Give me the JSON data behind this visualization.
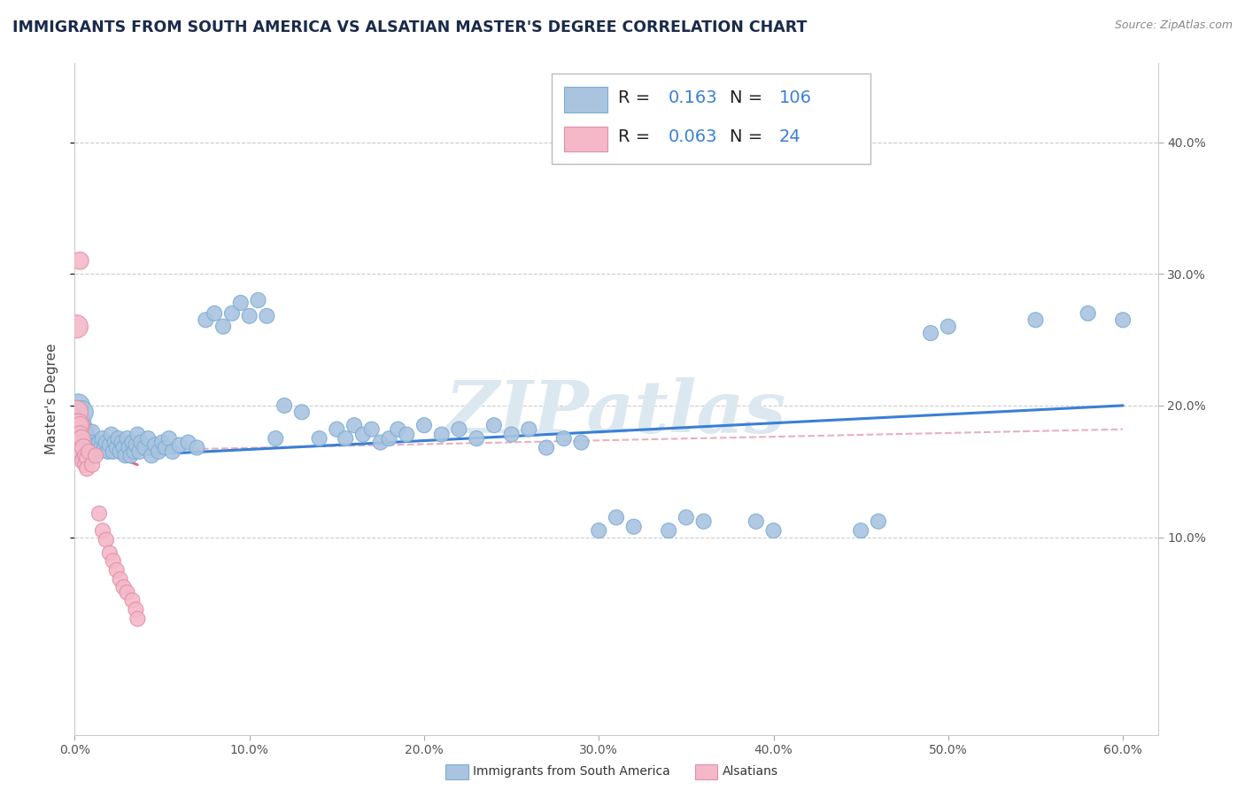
{
  "title": "IMMIGRANTS FROM SOUTH AMERICA VS ALSATIAN MASTER'S DEGREE CORRELATION CHART",
  "source": "Source: ZipAtlas.com",
  "ylabel": "Master's Degree",
  "xlim": [
    0.0,
    0.62
  ],
  "ylim": [
    -0.05,
    0.46
  ],
  "xtick_vals": [
    0.0,
    0.1,
    0.2,
    0.3,
    0.4,
    0.5,
    0.6
  ],
  "xtick_labels": [
    "0.0%",
    "10.0%",
    "20.0%",
    "30.0%",
    "40.0%",
    "50.0%",
    "60.0%"
  ],
  "ytick_vals": [
    0.1,
    0.2,
    0.3,
    0.4
  ],
  "ytick_labels": [
    "10.0%",
    "20.0%",
    "30.0%",
    "40.0%"
  ],
  "blue_color": "#aac4e0",
  "blue_edge": "#7aadd4",
  "pink_color": "#f4b8c8",
  "pink_edge": "#e090a8",
  "blue_line_color": "#3a7fd5",
  "pink_line_color": "#e06080",
  "pink_dash_color": "#e8b0bc",
  "grid_color": "#cccccc",
  "background_color": "#ffffff",
  "legend_R1": "0.163",
  "legend_N1": "106",
  "legend_R2": "0.063",
  "legend_N2": "24",
  "watermark": "ZIPatlas",
  "watermark_color": "#dce8f0",
  "blue_scatter": [
    [
      0.001,
      0.195
    ],
    [
      0.001,
      0.185
    ],
    [
      0.001,
      0.175
    ],
    [
      0.002,
      0.2
    ],
    [
      0.002,
      0.19
    ],
    [
      0.002,
      0.175
    ],
    [
      0.003,
      0.185
    ],
    [
      0.003,
      0.175
    ],
    [
      0.003,
      0.165
    ],
    [
      0.004,
      0.195
    ],
    [
      0.004,
      0.18
    ],
    [
      0.005,
      0.175
    ],
    [
      0.005,
      0.165
    ],
    [
      0.006,
      0.18
    ],
    [
      0.006,
      0.17
    ],
    [
      0.006,
      0.16
    ],
    [
      0.007,
      0.175
    ],
    [
      0.007,
      0.168
    ],
    [
      0.008,
      0.172
    ],
    [
      0.008,
      0.162
    ],
    [
      0.009,
      0.17
    ],
    [
      0.01,
      0.165
    ],
    [
      0.01,
      0.18
    ],
    [
      0.011,
      0.172
    ],
    [
      0.012,
      0.17
    ],
    [
      0.013,
      0.165
    ],
    [
      0.014,
      0.172
    ],
    [
      0.015,
      0.168
    ],
    [
      0.016,
      0.175
    ],
    [
      0.017,
      0.168
    ],
    [
      0.018,
      0.172
    ],
    [
      0.019,
      0.165
    ],
    [
      0.02,
      0.17
    ],
    [
      0.021,
      0.178
    ],
    [
      0.022,
      0.165
    ],
    [
      0.023,
      0.172
    ],
    [
      0.024,
      0.168
    ],
    [
      0.025,
      0.175
    ],
    [
      0.026,
      0.165
    ],
    [
      0.027,
      0.172
    ],
    [
      0.028,
      0.168
    ],
    [
      0.029,
      0.162
    ],
    [
      0.03,
      0.175
    ],
    [
      0.031,
      0.168
    ],
    [
      0.032,
      0.162
    ],
    [
      0.033,
      0.172
    ],
    [
      0.034,
      0.165
    ],
    [
      0.035,
      0.17
    ],
    [
      0.036,
      0.178
    ],
    [
      0.037,
      0.165
    ],
    [
      0.038,
      0.172
    ],
    [
      0.04,
      0.168
    ],
    [
      0.042,
      0.175
    ],
    [
      0.044,
      0.162
    ],
    [
      0.046,
      0.17
    ],
    [
      0.048,
      0.165
    ],
    [
      0.05,
      0.172
    ],
    [
      0.052,
      0.168
    ],
    [
      0.054,
      0.175
    ],
    [
      0.056,
      0.165
    ],
    [
      0.06,
      0.17
    ],
    [
      0.065,
      0.172
    ],
    [
      0.07,
      0.168
    ],
    [
      0.075,
      0.265
    ],
    [
      0.08,
      0.27
    ],
    [
      0.085,
      0.26
    ],
    [
      0.09,
      0.27
    ],
    [
      0.095,
      0.278
    ],
    [
      0.1,
      0.268
    ],
    [
      0.105,
      0.28
    ],
    [
      0.11,
      0.268
    ],
    [
      0.115,
      0.175
    ],
    [
      0.12,
      0.2
    ],
    [
      0.13,
      0.195
    ],
    [
      0.14,
      0.175
    ],
    [
      0.15,
      0.182
    ],
    [
      0.155,
      0.175
    ],
    [
      0.16,
      0.185
    ],
    [
      0.165,
      0.178
    ],
    [
      0.17,
      0.182
    ],
    [
      0.175,
      0.172
    ],
    [
      0.18,
      0.175
    ],
    [
      0.185,
      0.182
    ],
    [
      0.19,
      0.178
    ],
    [
      0.2,
      0.185
    ],
    [
      0.21,
      0.178
    ],
    [
      0.22,
      0.182
    ],
    [
      0.23,
      0.175
    ],
    [
      0.24,
      0.185
    ],
    [
      0.25,
      0.178
    ],
    [
      0.26,
      0.182
    ],
    [
      0.27,
      0.168
    ],
    [
      0.28,
      0.175
    ],
    [
      0.29,
      0.172
    ],
    [
      0.3,
      0.105
    ],
    [
      0.31,
      0.115
    ],
    [
      0.32,
      0.108
    ],
    [
      0.34,
      0.105
    ],
    [
      0.35,
      0.115
    ],
    [
      0.36,
      0.112
    ],
    [
      0.39,
      0.112
    ],
    [
      0.4,
      0.105
    ],
    [
      0.45,
      0.105
    ],
    [
      0.46,
      0.112
    ],
    [
      0.49,
      0.255
    ],
    [
      0.5,
      0.26
    ],
    [
      0.55,
      0.265
    ],
    [
      0.58,
      0.27
    ],
    [
      0.6,
      0.265
    ]
  ],
  "pink_scatter": [
    [
      0.001,
      0.26
    ],
    [
      0.001,
      0.195
    ],
    [
      0.001,
      0.185
    ],
    [
      0.002,
      0.185
    ],
    [
      0.002,
      0.175
    ],
    [
      0.003,
      0.31
    ],
    [
      0.003,
      0.185
    ],
    [
      0.003,
      0.178
    ],
    [
      0.004,
      0.175
    ],
    [
      0.004,
      0.165
    ],
    [
      0.005,
      0.168
    ],
    [
      0.005,
      0.158
    ],
    [
      0.006,
      0.162
    ],
    [
      0.006,
      0.155
    ],
    [
      0.007,
      0.16
    ],
    [
      0.007,
      0.152
    ],
    [
      0.008,
      0.165
    ],
    [
      0.01,
      0.155
    ],
    [
      0.012,
      0.162
    ],
    [
      0.014,
      0.118
    ],
    [
      0.016,
      0.105
    ],
    [
      0.018,
      0.098
    ],
    [
      0.02,
      0.088
    ],
    [
      0.022,
      0.082
    ],
    [
      0.024,
      0.075
    ],
    [
      0.026,
      0.068
    ],
    [
      0.028,
      0.062
    ],
    [
      0.03,
      0.058
    ],
    [
      0.033,
      0.052
    ],
    [
      0.035,
      0.045
    ],
    [
      0.036,
      0.038
    ]
  ],
  "blue_line": [
    [
      0.0,
      0.16
    ],
    [
      0.6,
      0.2
    ]
  ],
  "pink_line": [
    [
      0.0,
      0.172
    ],
    [
      0.036,
      0.155
    ]
  ],
  "pink_dash_line": [
    [
      0.0,
      0.165
    ],
    [
      0.6,
      0.182
    ]
  ],
  "title_fontsize": 12.5,
  "tick_fontsize": 10,
  "legend_fontsize": 14
}
